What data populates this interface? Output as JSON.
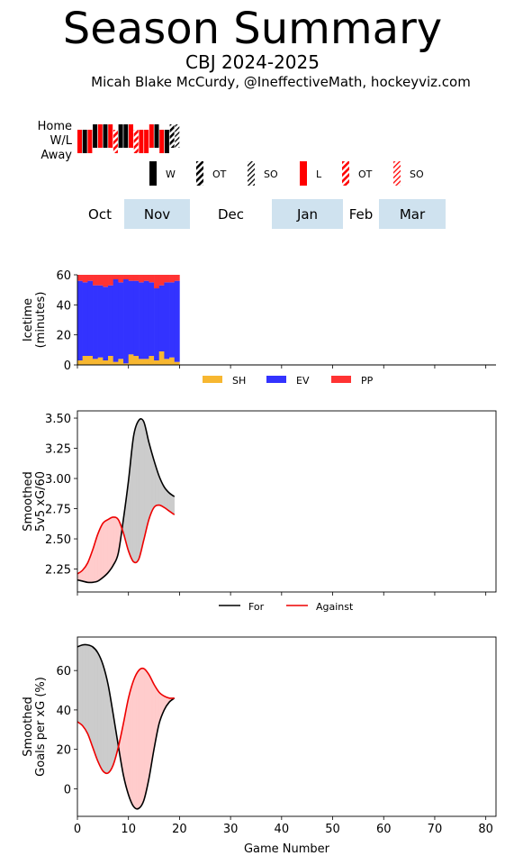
{
  "header": {
    "title": "Season Summary",
    "subtitle": "CBJ 2024-2025",
    "credit": "Micah Blake McCurdy, @IneffectiveMath, hockeyviz.com"
  },
  "results_strip": {
    "row_labels": [
      "Home",
      "W/L",
      "Away"
    ],
    "legend": [
      {
        "label": "W",
        "color": "#000000",
        "style": "solid"
      },
      {
        "label": "OT",
        "color": "#000000",
        "style": "hatch"
      },
      {
        "label": "SO",
        "color": "#000000",
        "style": "hatch-light"
      },
      {
        "label": "L",
        "color": "#ff0000",
        "style": "solid"
      },
      {
        "label": "OT",
        "color": "#ff0000",
        "style": "hatch"
      },
      {
        "label": "SO",
        "color": "#ff0000",
        "style": "hatch-light"
      }
    ],
    "games": [
      {
        "result": "L",
        "venue": "away"
      },
      {
        "result": "W",
        "venue": "away"
      },
      {
        "result": "L",
        "venue": "away"
      },
      {
        "result": "W",
        "venue": "home"
      },
      {
        "result": "L",
        "venue": "home"
      },
      {
        "result": "W",
        "venue": "home"
      },
      {
        "result": "L",
        "venue": "home"
      },
      {
        "result": "OTL",
        "venue": "away"
      },
      {
        "result": "W",
        "venue": "home"
      },
      {
        "result": "W",
        "venue": "home"
      },
      {
        "result": "L",
        "venue": "home"
      },
      {
        "result": "OTL",
        "venue": "away"
      },
      {
        "result": "L",
        "venue": "away"
      },
      {
        "result": "L",
        "venue": "away"
      },
      {
        "result": "L",
        "venue": "home"
      },
      {
        "result": "W",
        "venue": "home"
      },
      {
        "result": "L",
        "venue": "away"
      },
      {
        "result": "W",
        "venue": "away"
      },
      {
        "result": "OTW",
        "venue": "home"
      },
      {
        "result": "SOW",
        "venue": "home"
      }
    ],
    "months": [
      {
        "label": "Oct",
        "shaded": false
      },
      {
        "label": "Nov",
        "shaded": true
      },
      {
        "label": "Dec",
        "shaded": false
      },
      {
        "label": "Jan",
        "shaded": true
      },
      {
        "label": "Feb",
        "shaded": false
      },
      {
        "label": "Mar",
        "shaded": true
      }
    ],
    "shade_color": "#cfe2ef"
  },
  "chart_data": [
    {
      "type": "bar",
      "stacked": true,
      "ylabel": "Icetime\n(minutes)",
      "ylim": [
        0,
        60
      ],
      "yticks": [
        0,
        20,
        40,
        60
      ],
      "xlim": [
        0,
        82
      ],
      "x": [
        1,
        2,
        3,
        4,
        5,
        6,
        7,
        8,
        9,
        10,
        11,
        12,
        13,
        14,
        15,
        16,
        17,
        18,
        19,
        20
      ],
      "series": [
        {
          "name": "SH",
          "color": "#f7b731",
          "values": [
            3,
            6,
            6,
            4,
            5,
            3,
            6,
            2,
            4,
            1,
            7,
            6,
            4,
            4,
            6,
            3,
            9,
            4,
            5,
            2
          ]
        },
        {
          "name": "EV",
          "color": "#3333ff",
          "values": [
            53,
            49,
            50,
            49,
            48,
            49,
            47,
            55,
            51,
            56,
            49,
            50,
            51,
            52,
            49,
            48,
            44,
            51,
            50,
            54
          ]
        },
        {
          "name": "PP",
          "color": "#ff3333",
          "values": [
            4,
            5,
            4,
            7,
            7,
            8,
            7,
            3,
            5,
            3,
            4,
            4,
            5,
            4,
            5,
            9,
            7,
            5,
            5,
            4
          ]
        }
      ],
      "legend": "below"
    },
    {
      "type": "area",
      "ylabel": "Smoothed\n5v5 xG/60",
      "ylim": [
        2.06,
        3.56
      ],
      "yticks": [
        2.25,
        2.5,
        2.75,
        3.0,
        3.25,
        3.5
      ],
      "ytick_labels": [
        "2.25",
        "2.50",
        "2.75",
        "3.00",
        "3.25",
        "3.50"
      ],
      "xlim": [
        0,
        82
      ],
      "x": [
        0,
        1,
        2,
        3,
        4,
        5,
        6,
        7,
        8,
        9,
        10,
        11,
        12,
        13,
        14,
        15,
        16,
        17,
        18,
        19
      ],
      "series": [
        {
          "name": "For",
          "color": "#000000",
          "values": [
            2.16,
            2.15,
            2.14,
            2.14,
            2.15,
            2.18,
            2.22,
            2.28,
            2.38,
            2.66,
            2.98,
            3.35,
            3.48,
            3.47,
            3.3,
            3.15,
            3.02,
            2.93,
            2.88,
            2.85
          ]
        },
        {
          "name": "Against",
          "color": "#ee0000",
          "values": [
            2.21,
            2.24,
            2.3,
            2.41,
            2.54,
            2.63,
            2.66,
            2.68,
            2.66,
            2.55,
            2.4,
            2.31,
            2.33,
            2.49,
            2.66,
            2.76,
            2.78,
            2.76,
            2.73,
            2.7
          ]
        }
      ],
      "fill_for_above": "#cccccc",
      "fill_against_above": "#ffcccc",
      "legend": "below"
    },
    {
      "type": "area",
      "ylabel": "Smoothed\nGoals per xG (%)",
      "xlabel": "Game Number",
      "ylim": [
        -14,
        77
      ],
      "yticks": [
        0,
        20,
        40,
        60
      ],
      "xlim": [
        0,
        82
      ],
      "xticks": [
        0,
        10,
        20,
        30,
        40,
        50,
        60,
        70,
        80
      ],
      "x": [
        0,
        1,
        2,
        3,
        4,
        5,
        6,
        7,
        8,
        9,
        10,
        11,
        12,
        13,
        14,
        15,
        16,
        17,
        18,
        19
      ],
      "series": [
        {
          "name": "For",
          "color": "#000000",
          "values": [
            72,
            73,
            73,
            72,
            69,
            63,
            53,
            38,
            22,
            7,
            -3,
            -9,
            -10,
            -6,
            5,
            20,
            33,
            40,
            44,
            46
          ]
        },
        {
          "name": "Against",
          "color": "#ee0000",
          "values": [
            34,
            32,
            28,
            21,
            14,
            9,
            8,
            12,
            21,
            33,
            46,
            55,
            60,
            61,
            58,
            53,
            49,
            47,
            46,
            46
          ]
        }
      ],
      "fill_for_above": "#cccccc",
      "fill_against_above": "#ffcccc"
    }
  ]
}
